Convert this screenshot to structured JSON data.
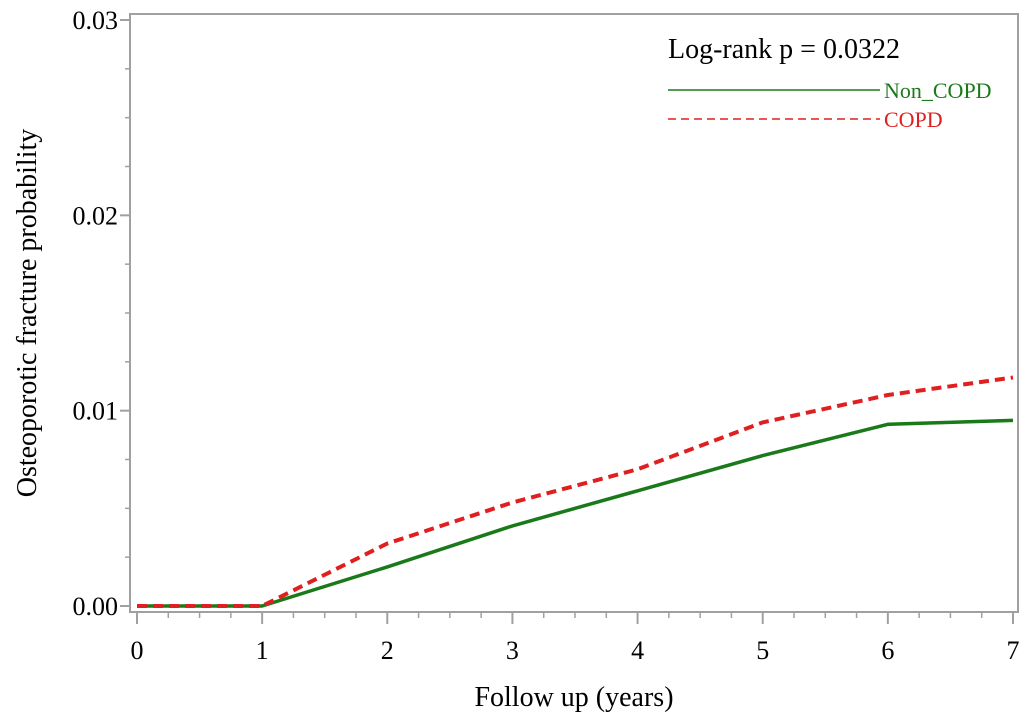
{
  "chart_data": {
    "type": "line",
    "title": "",
    "xlabel": "Follow up (years)",
    "ylabel": "Osteoporotic fracture probability",
    "xlim": [
      0,
      7
    ],
    "ylim": [
      0,
      0.03
    ],
    "xticks": [
      "0",
      "1",
      "2",
      "3",
      "4",
      "5",
      "6",
      "7"
    ],
    "yticks": [
      "0.00",
      "0.01",
      "0.02",
      "0.03"
    ],
    "grid": false,
    "annotation": "Log-rank p = 0.0322",
    "legend_position": "top-right",
    "series": [
      {
        "name": "Non_COPD",
        "color": "#1a7a1a",
        "style": "solid",
        "x": [
          0,
          1,
          2,
          3,
          4,
          5,
          6,
          7
        ],
        "y": [
          0.0,
          0.0,
          0.002,
          0.0041,
          0.0059,
          0.0077,
          0.0093,
          0.0095
        ]
      },
      {
        "name": "COPD",
        "color": "#e02020",
        "style": "dashed",
        "x": [
          0,
          1,
          2,
          3,
          4,
          5,
          6,
          7
        ],
        "y": [
          0.0,
          0.0,
          0.0032,
          0.0053,
          0.007,
          0.0094,
          0.0108,
          0.0117
        ]
      }
    ]
  }
}
